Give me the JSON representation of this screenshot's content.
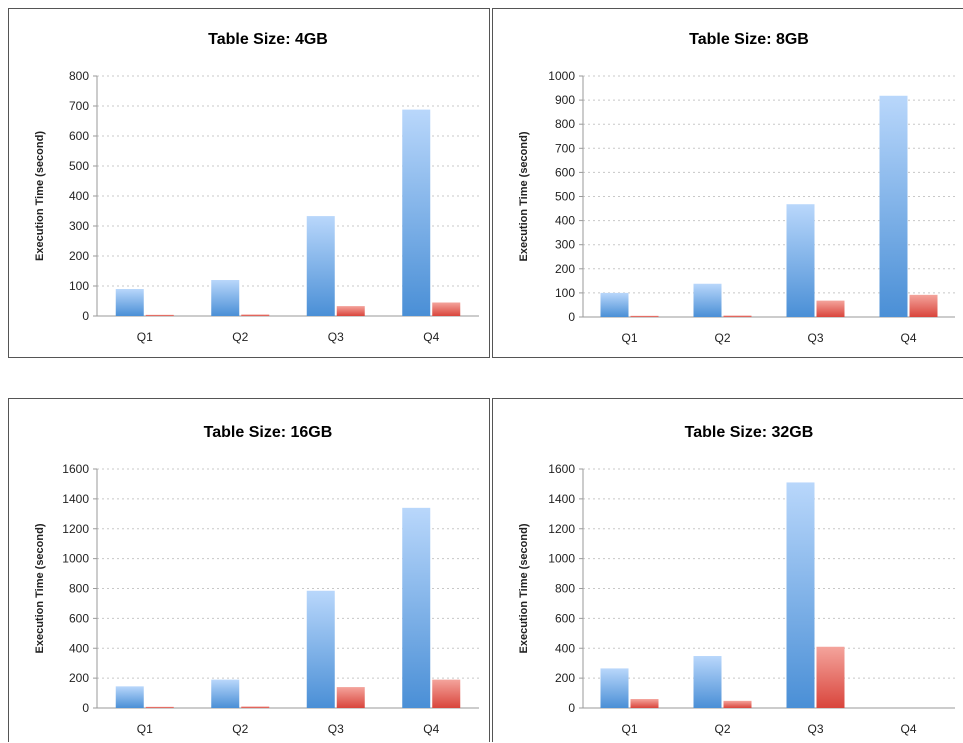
{
  "chart_data": [
    {
      "type": "bar",
      "title": "Table Size: 4GB",
      "ylabel": "Execution Time (second)",
      "xlabel": "",
      "categories": [
        "Q1",
        "Q2",
        "Q3",
        "Q4"
      ],
      "ylim": [
        0,
        800
      ],
      "yticks": [
        0,
        100,
        200,
        300,
        400,
        500,
        600,
        700,
        800
      ],
      "series": [
        {
          "values": [
            90,
            120,
            333,
            688
          ],
          "color": "#5b9bd5"
        },
        {
          "values": [
            4,
            5,
            33,
            45
          ],
          "color": "#e05a50"
        }
      ]
    },
    {
      "type": "bar",
      "title": "Table Size: 8GB",
      "ylabel": "Execution Time (second)",
      "xlabel": "",
      "categories": [
        "Q1",
        "Q2",
        "Q3",
        "Q4"
      ],
      "ylim": [
        0,
        1000
      ],
      "yticks": [
        0,
        100,
        200,
        300,
        400,
        500,
        600,
        700,
        800,
        900,
        1000
      ],
      "series": [
        {
          "values": [
            100,
            138,
            468,
            918
          ],
          "color": "#5b9bd5"
        },
        {
          "values": [
            5,
            6,
            68,
            92
          ],
          "color": "#e05a50"
        }
      ]
    },
    {
      "type": "bar",
      "title": "Table Size: 16GB",
      "ylabel": "Execution Time (second)",
      "xlabel": "",
      "categories": [
        "Q1",
        "Q2",
        "Q3",
        "Q4"
      ],
      "ylim": [
        0,
        1600
      ],
      "yticks": [
        0,
        200,
        400,
        600,
        800,
        1000,
        1200,
        1400,
        1600
      ],
      "series": [
        {
          "values": [
            145,
            190,
            785,
            1340
          ],
          "color": "#5b9bd5"
        },
        {
          "values": [
            8,
            10,
            140,
            190
          ],
          "color": "#e05a50"
        }
      ]
    },
    {
      "type": "bar",
      "title": "Table Size: 32GB",
      "ylabel": "Execution Time (second)",
      "xlabel": "",
      "categories": [
        "Q1",
        "Q2",
        "Q3",
        "Q4"
      ],
      "ylim": [
        0,
        1600
      ],
      "yticks": [
        0,
        200,
        400,
        600,
        800,
        1000,
        1200,
        1400,
        1600
      ],
      "series": [
        {
          "values": [
            265,
            348,
            1510,
            null
          ],
          "color": "#5b9bd5"
        },
        {
          "values": [
            60,
            48,
            410,
            null
          ],
          "color": "#e05a50"
        }
      ]
    }
  ]
}
